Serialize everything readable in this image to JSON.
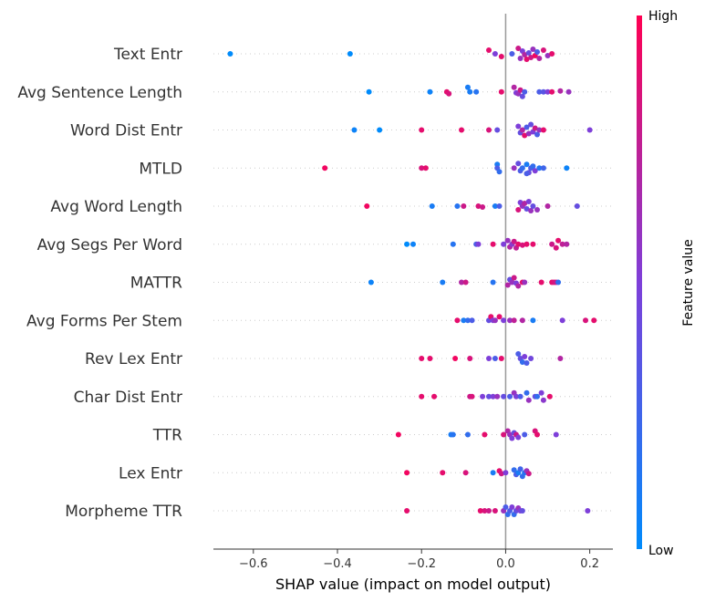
{
  "chart_data": {
    "type": "scatter",
    "title": "",
    "xlabel": "SHAP value (impact on model output)",
    "ylabel": "",
    "xlim": [
      -0.695,
      0.255
    ],
    "xticks": [
      -0.6,
      -0.4,
      -0.2,
      0.0,
      0.2
    ],
    "xtick_labels": [
      "−0.6",
      "−0.4",
      "−0.2",
      "0.0",
      "0.2"
    ],
    "colorbar": {
      "label": "Feature value",
      "high_label": "High",
      "low_label": "Low"
    },
    "colors": {
      "low": "#008bfb",
      "high": "#ff0052",
      "zero_line": "#999999",
      "grid": "#cccccc"
    },
    "features": [
      {
        "name": "Text Entr",
        "points": [
          [
            -0.655,
            0.0,
            0.0
          ],
          [
            -0.37,
            0.0,
            0.0
          ],
          [
            -0.04,
            0.9,
            -0.2
          ],
          [
            -0.025,
            0.5,
            0.0
          ],
          [
            -0.01,
            0.9,
            0.15
          ],
          [
            0.015,
            0.3,
            0.0
          ],
          [
            0.03,
            0.8,
            -0.3
          ],
          [
            0.035,
            0.6,
            0.25
          ],
          [
            0.04,
            0.5,
            -0.15
          ],
          [
            0.045,
            0.7,
            0.05
          ],
          [
            0.05,
            0.9,
            0.3
          ],
          [
            0.055,
            0.4,
            -0.05
          ],
          [
            0.06,
            0.8,
            0.2
          ],
          [
            0.065,
            0.6,
            -0.25
          ],
          [
            0.07,
            0.95,
            0.1
          ],
          [
            0.075,
            0.3,
            -0.1
          ],
          [
            0.08,
            0.7,
            0.25
          ],
          [
            0.09,
            0.85,
            -0.2
          ],
          [
            0.1,
            0.6,
            0.1
          ],
          [
            0.11,
            0.9,
            0.0
          ]
        ]
      },
      {
        "name": "Avg Sentence Length",
        "points": [
          [
            -0.325,
            0.0,
            0.0
          ],
          [
            -0.18,
            0.05,
            0.0
          ],
          [
            -0.14,
            0.9,
            0.0
          ],
          [
            -0.135,
            0.85,
            0.1
          ],
          [
            -0.09,
            0.1,
            -0.25
          ],
          [
            -0.085,
            0.1,
            0.0
          ],
          [
            -0.07,
            0.15,
            0.0
          ],
          [
            -0.01,
            0.9,
            0.0
          ],
          [
            0.02,
            0.7,
            -0.25
          ],
          [
            0.025,
            0.5,
            0.05
          ],
          [
            0.03,
            0.6,
            0.1
          ],
          [
            0.035,
            0.8,
            -0.1
          ],
          [
            0.04,
            0.4,
            0.25
          ],
          [
            0.045,
            0.3,
            0.0
          ],
          [
            0.08,
            0.3,
            0.0
          ],
          [
            0.09,
            0.35,
            0.0
          ],
          [
            0.1,
            0.5,
            0.0
          ],
          [
            0.11,
            0.9,
            0.0
          ],
          [
            0.13,
            0.7,
            -0.05
          ],
          [
            0.15,
            0.6,
            0.0
          ]
        ]
      },
      {
        "name": "Word Dist Entr",
        "points": [
          [
            -0.36,
            0.05,
            0.0
          ],
          [
            -0.3,
            0.0,
            0.0
          ],
          [
            -0.2,
            0.9,
            0.0
          ],
          [
            -0.105,
            0.9,
            0.0
          ],
          [
            -0.04,
            0.85,
            0.0
          ],
          [
            -0.02,
            0.4,
            0.0
          ],
          [
            0.03,
            0.5,
            -0.2
          ],
          [
            0.035,
            0.4,
            0.15
          ],
          [
            0.04,
            0.7,
            0.0
          ],
          [
            0.045,
            0.9,
            0.3
          ],
          [
            0.05,
            0.3,
            -0.15
          ],
          [
            0.055,
            0.6,
            0.2
          ],
          [
            0.06,
            0.4,
            -0.3
          ],
          [
            0.065,
            0.5,
            0.1
          ],
          [
            0.07,
            0.8,
            -0.1
          ],
          [
            0.075,
            0.3,
            0.25
          ],
          [
            0.08,
            0.6,
            0.0
          ],
          [
            0.09,
            0.9,
            0.0
          ],
          [
            0.2,
            0.5,
            0.0
          ]
        ]
      },
      {
        "name": "MTLD",
        "points": [
          [
            -0.43,
            0.95,
            0.0
          ],
          [
            -0.2,
            0.85,
            0.0
          ],
          [
            -0.19,
            0.9,
            0.0
          ],
          [
            -0.02,
            0.1,
            -0.2
          ],
          [
            -0.02,
            0.3,
            0.0
          ],
          [
            -0.015,
            0.2,
            0.2
          ],
          [
            0.02,
            0.6,
            0.0
          ],
          [
            0.03,
            0.4,
            -0.25
          ],
          [
            0.035,
            0.3,
            0.15
          ],
          [
            0.04,
            0.2,
            0.0
          ],
          [
            0.05,
            0.1,
            -0.2
          ],
          [
            0.055,
            0.4,
            0.25
          ],
          [
            0.06,
            0.3,
            0.0
          ],
          [
            0.065,
            0.2,
            -0.1
          ],
          [
            0.07,
            0.5,
            0.15
          ],
          [
            0.08,
            0.15,
            0.0
          ],
          [
            0.09,
            0.25,
            0.0
          ],
          [
            0.145,
            0.05,
            0.0
          ],
          [
            0.05,
            0.3,
            0.3
          ]
        ]
      },
      {
        "name": "Avg Word Length",
        "points": [
          [
            -0.33,
            0.95,
            0.0
          ],
          [
            -0.175,
            0.1,
            0.0
          ],
          [
            -0.115,
            0.15,
            0.0
          ],
          [
            -0.1,
            0.8,
            0.0
          ],
          [
            -0.065,
            0.85,
            0.0
          ],
          [
            -0.055,
            0.8,
            0.05
          ],
          [
            -0.025,
            0.1,
            0.0
          ],
          [
            -0.015,
            0.3,
            0.0
          ],
          [
            0.03,
            0.85,
            0.2
          ],
          [
            0.035,
            0.5,
            -0.2
          ],
          [
            0.04,
            0.6,
            0.0
          ],
          [
            0.045,
            0.7,
            -0.15
          ],
          [
            0.05,
            0.4,
            0.15
          ],
          [
            0.055,
            0.5,
            -0.25
          ],
          [
            0.06,
            0.6,
            0.25
          ],
          [
            0.065,
            0.4,
            0.0
          ],
          [
            0.075,
            0.6,
            0.2
          ],
          [
            0.1,
            0.7,
            0.0
          ],
          [
            0.17,
            0.4,
            0.0
          ]
        ]
      },
      {
        "name": "Avg Segs Per Word",
        "points": [
          [
            -0.235,
            0.0,
            0.0
          ],
          [
            -0.22,
            0.05,
            0.0
          ],
          [
            -0.125,
            0.15,
            0.0
          ],
          [
            -0.07,
            0.3,
            0.0
          ],
          [
            -0.065,
            0.5,
            0.0
          ],
          [
            -0.03,
            0.9,
            0.0
          ],
          [
            -0.005,
            0.5,
            0.0
          ],
          [
            0.005,
            0.6,
            -0.2
          ],
          [
            0.01,
            0.7,
            0.15
          ],
          [
            0.015,
            0.55,
            0.0
          ],
          [
            0.02,
            0.8,
            -0.15
          ],
          [
            0.025,
            0.75,
            0.2
          ],
          [
            0.03,
            0.9,
            0.0
          ],
          [
            0.04,
            0.85,
            0.05
          ],
          [
            0.05,
            0.9,
            0.0
          ],
          [
            0.065,
            0.9,
            0.0
          ],
          [
            0.11,
            0.8,
            0.0
          ],
          [
            0.12,
            0.85,
            0.2
          ],
          [
            0.125,
            0.9,
            -0.2
          ],
          [
            0.135,
            0.75,
            0.0
          ],
          [
            0.145,
            0.7,
            0.0
          ]
        ]
      },
      {
        "name": "MATTR",
        "points": [
          [
            -0.32,
            0.05,
            0.0
          ],
          [
            -0.15,
            0.1,
            0.0
          ],
          [
            -0.105,
            0.7,
            0.0
          ],
          [
            -0.095,
            0.8,
            0.0
          ],
          [
            -0.03,
            0.15,
            0.0
          ],
          [
            0.005,
            0.7,
            0.15
          ],
          [
            0.01,
            0.4,
            -0.15
          ],
          [
            0.015,
            0.6,
            0.0
          ],
          [
            0.02,
            0.8,
            -0.25
          ],
          [
            0.025,
            0.5,
            0.05
          ],
          [
            0.03,
            0.7,
            0.2
          ],
          [
            0.04,
            0.9,
            0.0
          ],
          [
            0.045,
            0.6,
            0.0
          ],
          [
            0.085,
            0.9,
            0.0
          ],
          [
            0.11,
            0.9,
            0.0
          ],
          [
            0.115,
            0.85,
            0.0
          ],
          [
            0.12,
            0.8,
            0.0
          ],
          [
            0.125,
            0.2,
            0.0
          ]
        ]
      },
      {
        "name": "Avg Forms Per Stem",
        "points": [
          [
            -0.115,
            0.9,
            0.0
          ],
          [
            -0.1,
            0.1,
            0.0
          ],
          [
            -0.09,
            0.2,
            0.0
          ],
          [
            -0.08,
            0.3,
            0.0
          ],
          [
            -0.04,
            0.4,
            0.0
          ],
          [
            -0.035,
            0.9,
            -0.2
          ],
          [
            -0.03,
            0.5,
            0.0
          ],
          [
            -0.025,
            0.6,
            0.0
          ],
          [
            -0.015,
            0.9,
            -0.2
          ],
          [
            -0.005,
            0.5,
            0.0
          ],
          [
            0.01,
            0.6,
            0.0
          ],
          [
            0.02,
            0.75,
            0.0
          ],
          [
            0.04,
            0.7,
            0.0
          ],
          [
            0.065,
            0.1,
            0.0
          ],
          [
            0.135,
            0.5,
            0.0
          ],
          [
            0.19,
            0.85,
            0.0
          ],
          [
            0.21,
            0.9,
            0.0
          ]
        ]
      },
      {
        "name": "Rev Lex Entr",
        "points": [
          [
            -0.2,
            0.9,
            0.0
          ],
          [
            -0.18,
            0.9,
            0.0
          ],
          [
            -0.12,
            0.95,
            0.0
          ],
          [
            -0.085,
            0.85,
            0.0
          ],
          [
            -0.04,
            0.5,
            0.0
          ],
          [
            -0.025,
            0.3,
            0.0
          ],
          [
            -0.01,
            0.9,
            0.0
          ],
          [
            0.03,
            0.3,
            -0.25
          ],
          [
            0.035,
            0.4,
            0.0
          ],
          [
            0.04,
            0.2,
            0.2
          ],
          [
            0.045,
            0.5,
            -0.1
          ],
          [
            0.05,
            0.3,
            0.25
          ],
          [
            0.06,
            0.45,
            0.0
          ],
          [
            0.13,
            0.7,
            0.0
          ]
        ]
      },
      {
        "name": "Char Dist Entr",
        "points": [
          [
            -0.2,
            0.9,
            0.0
          ],
          [
            -0.17,
            0.9,
            0.0
          ],
          [
            -0.085,
            0.8,
            0.0
          ],
          [
            -0.08,
            0.85,
            0.0
          ],
          [
            -0.055,
            0.5,
            0.0
          ],
          [
            -0.04,
            0.4,
            0.0
          ],
          [
            -0.03,
            0.5,
            0.0
          ],
          [
            -0.02,
            0.6,
            0.0
          ],
          [
            -0.005,
            0.4,
            0.0
          ],
          [
            0.01,
            0.3,
            0.0
          ],
          [
            0.02,
            0.6,
            -0.2
          ],
          [
            0.025,
            0.5,
            0.0
          ],
          [
            0.035,
            0.3,
            0.0
          ],
          [
            0.05,
            0.2,
            -0.2
          ],
          [
            0.055,
            0.6,
            0.2
          ],
          [
            0.07,
            0.4,
            0.0
          ],
          [
            0.075,
            0.2,
            0.0
          ],
          [
            0.085,
            0.5,
            -0.2
          ],
          [
            0.09,
            0.55,
            0.2
          ],
          [
            0.105,
            0.9,
            0.0
          ]
        ]
      },
      {
        "name": "TTR",
        "points": [
          [
            -0.255,
            0.95,
            0.0
          ],
          [
            -0.13,
            0.1,
            0.0
          ],
          [
            -0.125,
            0.15,
            0.0
          ],
          [
            -0.09,
            0.2,
            0.0
          ],
          [
            -0.05,
            0.9,
            0.0
          ],
          [
            -0.005,
            0.85,
            0.0
          ],
          [
            0.005,
            0.7,
            -0.2
          ],
          [
            0.01,
            0.6,
            0.0
          ],
          [
            0.015,
            0.5,
            0.2
          ],
          [
            0.02,
            0.4,
            -0.1
          ],
          [
            0.025,
            0.8,
            0.0
          ],
          [
            0.03,
            0.5,
            0.15
          ],
          [
            0.045,
            0.3,
            0.0
          ],
          [
            0.07,
            0.85,
            -0.2
          ],
          [
            0.075,
            0.9,
            0.0
          ],
          [
            0.12,
            0.5,
            0.0
          ]
        ]
      },
      {
        "name": "Lex Entr",
        "points": [
          [
            -0.235,
            0.95,
            0.0
          ],
          [
            -0.15,
            0.9,
            0.0
          ],
          [
            -0.095,
            0.85,
            0.0
          ],
          [
            -0.03,
            0.1,
            0.0
          ],
          [
            -0.015,
            0.9,
            -0.1
          ],
          [
            -0.01,
            0.8,
            0.05
          ],
          [
            0.0,
            0.5,
            0.0
          ],
          [
            0.02,
            0.2,
            -0.15
          ],
          [
            0.025,
            0.3,
            0.1
          ],
          [
            0.03,
            0.1,
            0.0
          ],
          [
            0.035,
            0.25,
            -0.2
          ],
          [
            0.04,
            0.2,
            0.2
          ],
          [
            0.045,
            0.15,
            0.0
          ],
          [
            0.05,
            0.6,
            -0.1
          ],
          [
            0.055,
            0.8,
            0.05
          ]
        ]
      },
      {
        "name": "Morpheme TTR",
        "points": [
          [
            -0.235,
            0.9,
            0.0
          ],
          [
            -0.06,
            0.9,
            0.0
          ],
          [
            -0.05,
            0.85,
            0.0
          ],
          [
            -0.04,
            0.8,
            0.0
          ],
          [
            -0.025,
            0.85,
            0.0
          ],
          [
            -0.005,
            0.6,
            0.0
          ],
          [
            0.0,
            0.3,
            -0.2
          ],
          [
            0.005,
            0.2,
            0.2
          ],
          [
            0.01,
            0.3,
            0.0
          ],
          [
            0.015,
            0.5,
            -0.2
          ],
          [
            0.02,
            0.2,
            0.2
          ],
          [
            0.025,
            0.4,
            0.0
          ],
          [
            0.03,
            0.6,
            -0.15
          ],
          [
            0.035,
            0.5,
            0.0
          ],
          [
            0.04,
            0.4,
            0.0
          ],
          [
            0.195,
            0.5,
            0.0
          ]
        ]
      }
    ]
  }
}
